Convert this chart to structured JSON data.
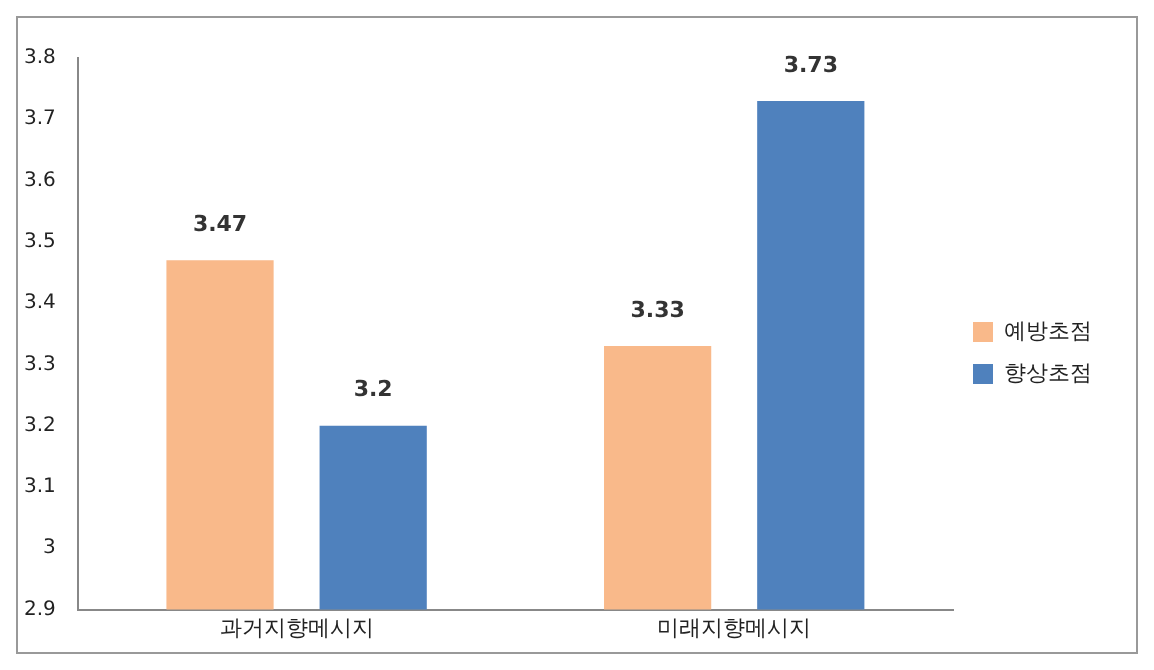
{
  "chart_data": {
    "type": "bar",
    "categories": [
      "과거지향메시지",
      "미래지향메시지"
    ],
    "series": [
      {
        "name": "예방초점",
        "color": "#f9b98a",
        "values": [
          3.47,
          3.33
        ]
      },
      {
        "name": "향상초점",
        "color": "#4f81bd",
        "values": [
          3.2,
          3.73
        ]
      }
    ],
    "ylim": [
      2.9,
      3.8
    ],
    "yticks": [
      2.9,
      3,
      3.1,
      3.2,
      3.3,
      3.4,
      3.5,
      3.6,
      3.7,
      3.8
    ],
    "grid": false,
    "legend": "right",
    "data_labels": true
  }
}
